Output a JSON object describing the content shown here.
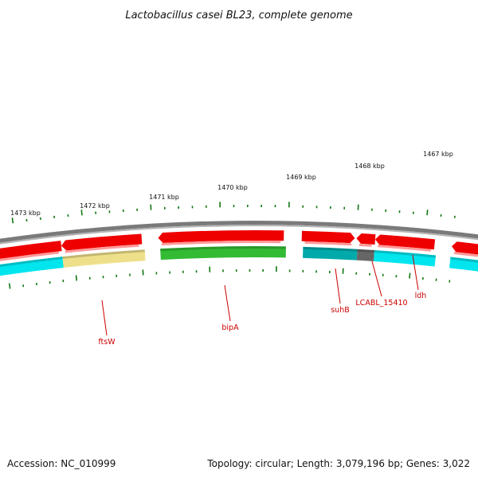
{
  "title": "Lactobacillus casei BL23, complete genome",
  "scale_labels": [
    "1473 kbp",
    "1472 kbp",
    "1471 kbp",
    "1470 kbp",
    "1469 kbp",
    "1468 kbp",
    "1467 kbp"
  ],
  "genes": [
    {
      "name": "ftsW"
    },
    {
      "name": "bipA"
    },
    {
      "name": "suhB"
    },
    {
      "name": "LCABL_15410"
    },
    {
      "name": "ldh"
    }
  ],
  "colors": {
    "backbone": "#7a7a7a",
    "cds": "#ee0000",
    "cyan": "#00e5ee",
    "teal": "#00aaaa",
    "green": "#33bb33",
    "khaki": "#eee08a",
    "dark": "#666666",
    "tick": "#117711",
    "label": "#cc0000"
  },
  "footer": {
    "accession": "Accession: NC_010999",
    "summary": "Topology: circular; Length: 3,079,196 bp; Genes: 3,022"
  }
}
